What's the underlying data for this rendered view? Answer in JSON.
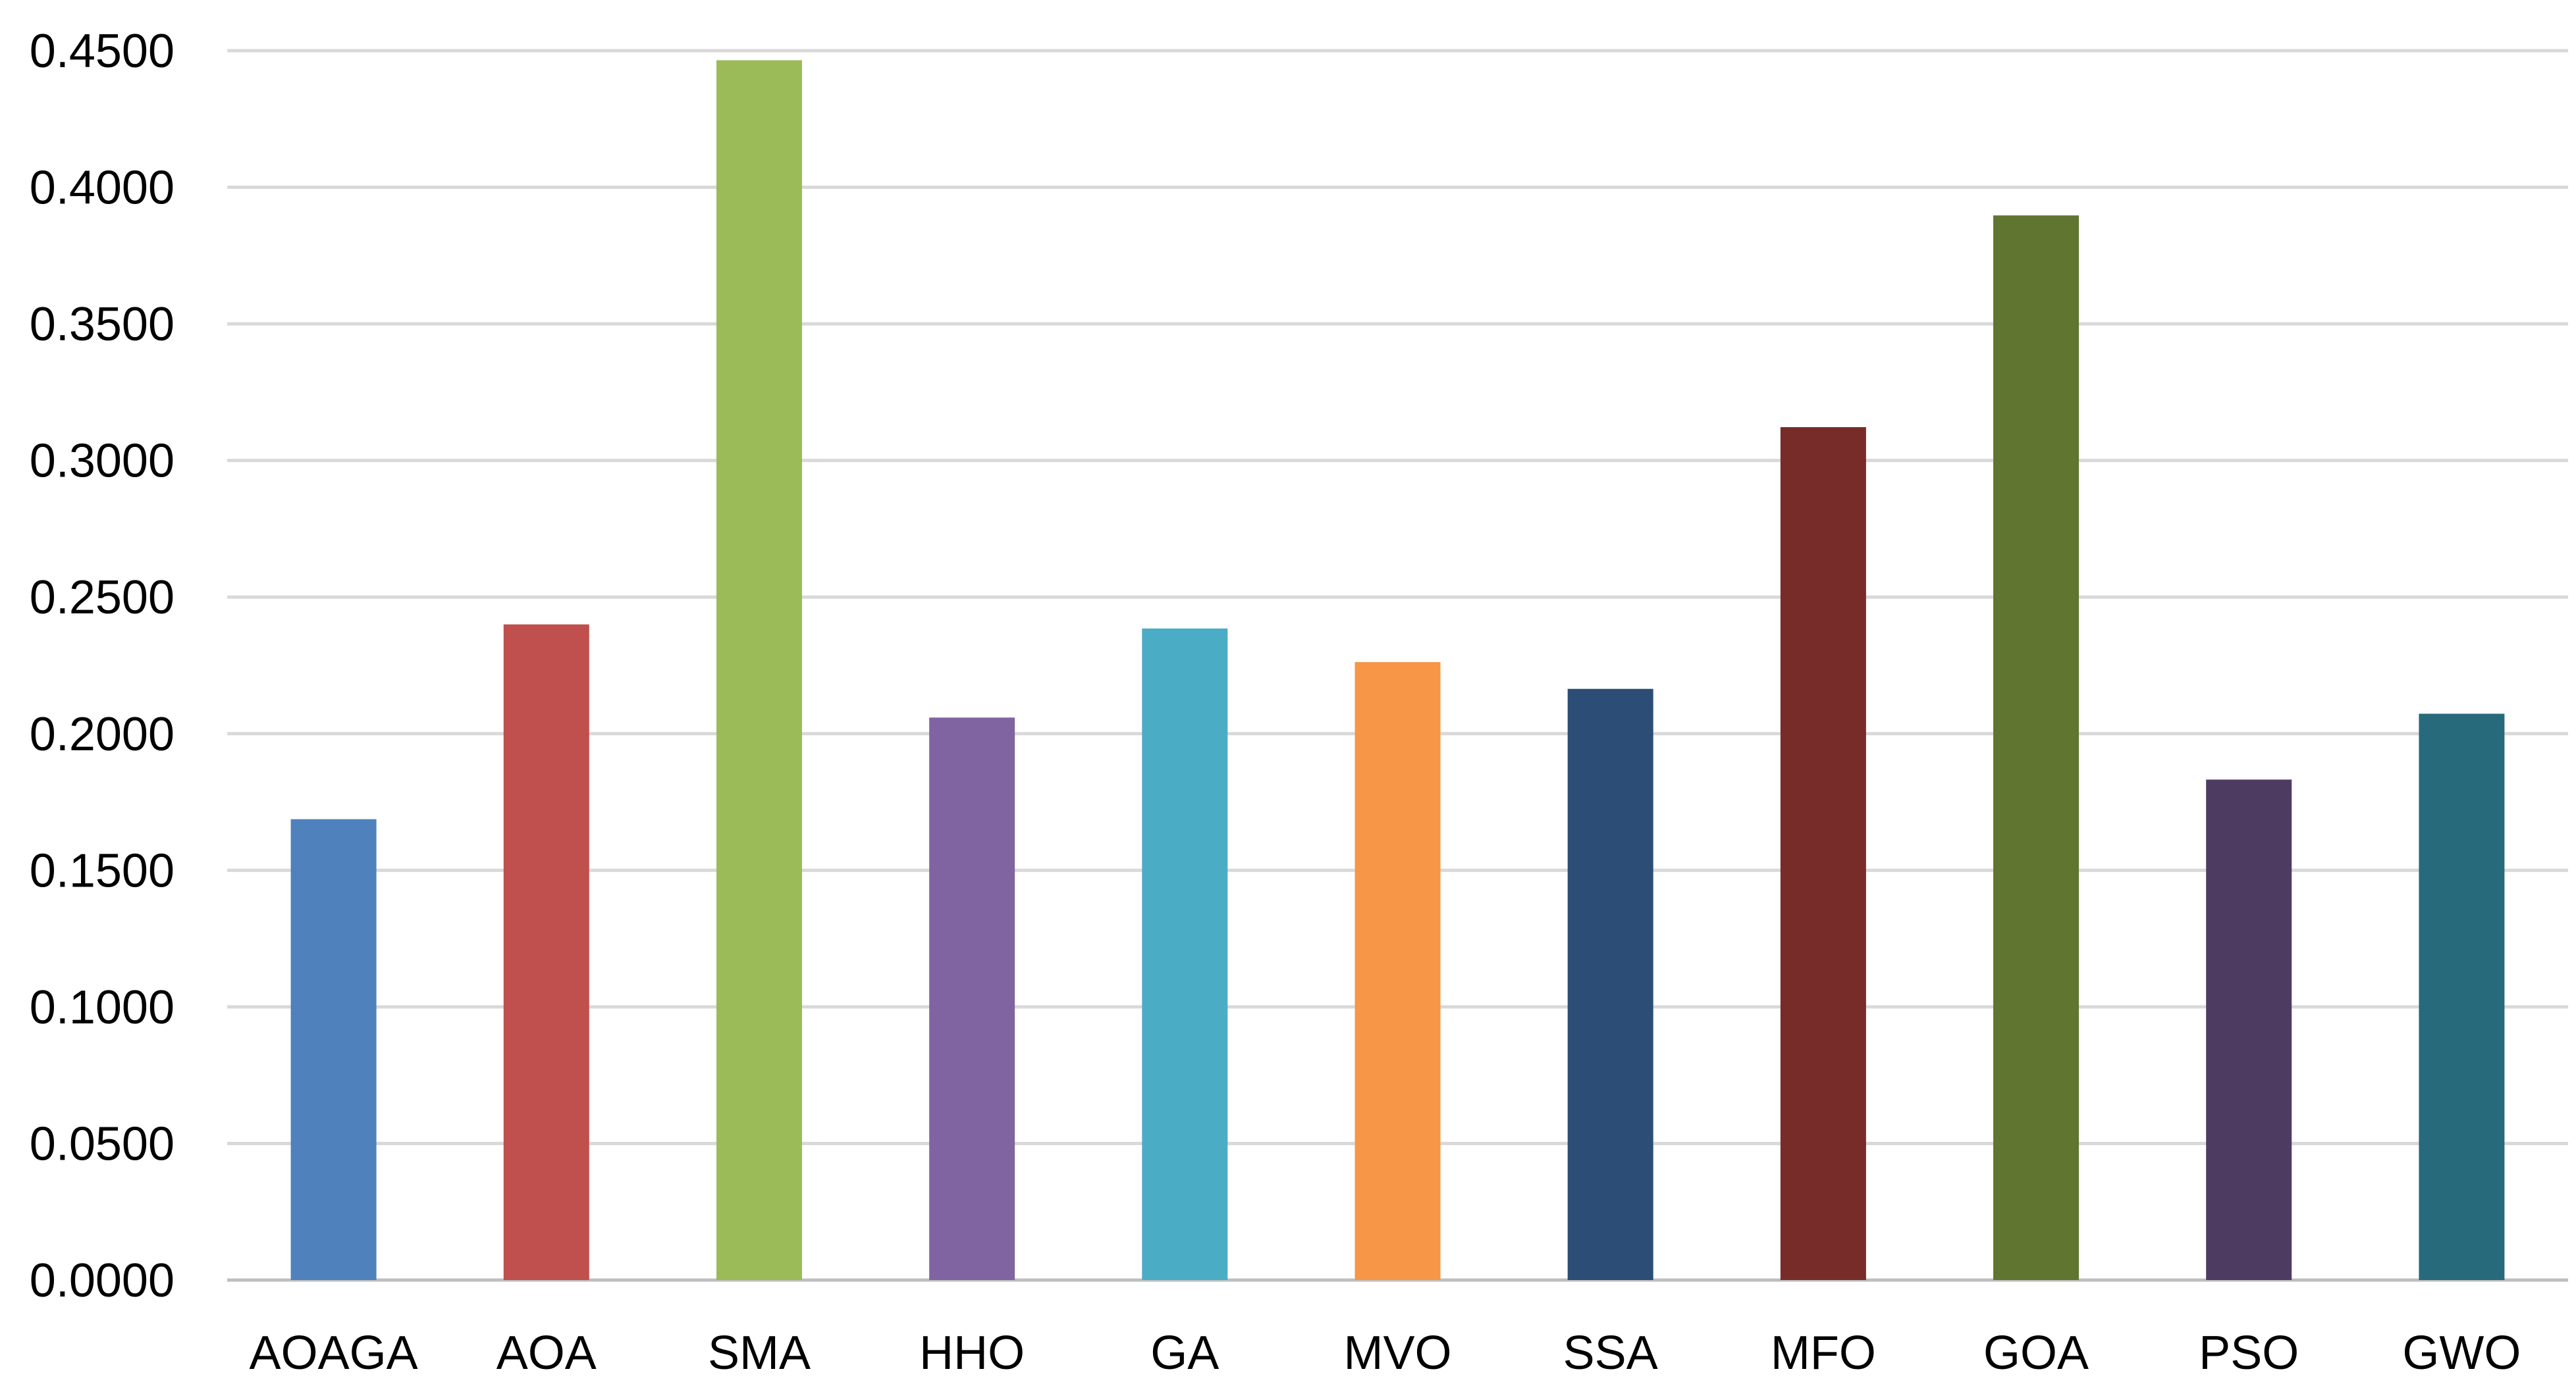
{
  "chart_data": {
    "type": "bar",
    "title": "",
    "xlabel": "",
    "ylabel": "",
    "categories": [
      "AOAGA",
      "AOA",
      "SMA",
      "HHO",
      "GA",
      "MVO",
      "SSA",
      "MFO",
      "GOA",
      "PSO",
      "GWO"
    ],
    "values": [
      0.1687,
      0.24,
      0.4465,
      0.2059,
      0.2385,
      0.2262,
      0.2164,
      0.3122,
      0.3897,
      0.1832,
      0.2073
    ],
    "colors": [
      "#4f81bd",
      "#c0504d",
      "#9bbb59",
      "#8064a2",
      "#4bacc6",
      "#f79646",
      "#2c4d75",
      "#772c2a",
      "#5f7530",
      "#4d3b62",
      "#276a7c"
    ],
    "ylim": [
      0,
      0.45
    ],
    "yticks": [
      "0.0000",
      "0.0500",
      "0.1000",
      "0.1500",
      "0.2000",
      "0.2500",
      "0.3000",
      "0.3500",
      "0.4000",
      "0.4500"
    ],
    "grid": true,
    "legend": "none"
  }
}
